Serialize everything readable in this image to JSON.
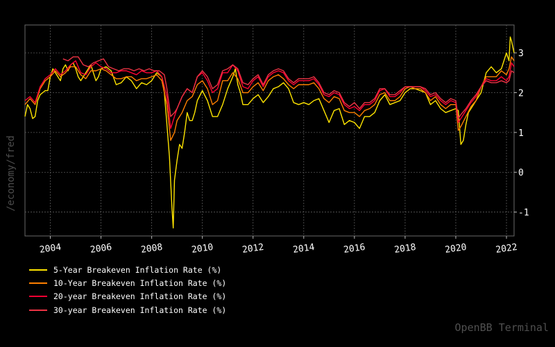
{
  "side_label": "/economy/fred",
  "watermark": "OpenBB Terminal",
  "chart_data": {
    "type": "line",
    "title": "",
    "xlabel": "",
    "ylabel": "",
    "xlim": [
      2003.0,
      2022.3
    ],
    "ylim": [
      -1.6,
      3.7
    ],
    "x_ticks": [
      "2004",
      "2006",
      "2008",
      "2010",
      "2012",
      "2014",
      "2016",
      "2018",
      "2020",
      "2022"
    ],
    "y_ticks": [
      "-1",
      "0",
      "1",
      "2",
      "3"
    ],
    "y_tick_values": [
      -1,
      0,
      1,
      2,
      3
    ],
    "x_tick_values": [
      2004,
      2006,
      2008,
      2010,
      2012,
      2014,
      2016,
      2018,
      2020,
      2022
    ],
    "y_axis_side": "right",
    "grid": true,
    "legend_position": "bottom-left",
    "series": [
      {
        "name": "5-Year Breakeven Inflation Rate (%)",
        "color": "#ffe500",
        "x": [
          2003.0,
          2003.1,
          2003.2,
          2003.3,
          2003.4,
          2003.5,
          2003.6,
          2003.7,
          2003.8,
          2003.9,
          2004.0,
          2004.1,
          2004.2,
          2004.3,
          2004.4,
          2004.5,
          2004.6,
          2004.7,
          2004.8,
          2004.9,
          2005.0,
          2005.1,
          2005.2,
          2005.3,
          2005.4,
          2005.5,
          2005.6,
          2005.7,
          2005.8,
          2005.9,
          2006.0,
          2006.2,
          2006.4,
          2006.6,
          2006.8,
          2007.0,
          2007.2,
          2007.4,
          2007.6,
          2007.8,
          2008.0,
          2008.2,
          2008.4,
          2008.5,
          2008.6,
          2008.7,
          2008.8,
          2008.85,
          2008.9,
          2009.0,
          2009.1,
          2009.2,
          2009.3,
          2009.4,
          2009.5,
          2009.6,
          2009.7,
          2009.8,
          2010.0,
          2010.2,
          2010.4,
          2010.6,
          2010.8,
          2011.0,
          2011.2,
          2011.3,
          2011.4,
          2011.5,
          2011.6,
          2011.8,
          2012.0,
          2012.2,
          2012.4,
          2012.6,
          2012.8,
          2013.0,
          2013.2,
          2013.4,
          2013.6,
          2013.8,
          2014.0,
          2014.2,
          2014.4,
          2014.6,
          2014.8,
          2015.0,
          2015.2,
          2015.4,
          2015.6,
          2015.8,
          2016.0,
          2016.2,
          2016.4,
          2016.6,
          2016.8,
          2017.0,
          2017.2,
          2017.4,
          2017.6,
          2017.8,
          2018.0,
          2018.2,
          2018.4,
          2018.6,
          2018.8,
          2019.0,
          2019.2,
          2019.4,
          2019.6,
          2019.8,
          2020.0,
          2020.1,
          2020.2,
          2020.3,
          2020.4,
          2020.5,
          2020.6,
          2020.8,
          2021.0,
          2021.2,
          2021.4,
          2021.6,
          2021.8,
          2021.9,
          2022.0,
          2022.1,
          2022.15,
          2022.2,
          2022.3
        ],
        "y": [
          1.4,
          1.7,
          1.6,
          1.35,
          1.4,
          1.8,
          1.95,
          2.0,
          2.05,
          2.05,
          2.4,
          2.6,
          2.5,
          2.4,
          2.3,
          2.6,
          2.7,
          2.55,
          2.7,
          2.75,
          2.6,
          2.4,
          2.3,
          2.4,
          2.5,
          2.6,
          2.7,
          2.5,
          2.3,
          2.4,
          2.6,
          2.65,
          2.55,
          2.2,
          2.25,
          2.4,
          2.3,
          2.1,
          2.25,
          2.2,
          2.3,
          2.5,
          2.4,
          2.0,
          1.2,
          0.4,
          -0.9,
          -1.4,
          -0.2,
          0.3,
          0.7,
          0.6,
          1.0,
          1.5,
          1.3,
          1.3,
          1.5,
          1.8,
          2.05,
          1.8,
          1.4,
          1.4,
          1.7,
          2.1,
          2.4,
          2.6,
          2.2,
          2.0,
          1.7,
          1.7,
          1.85,
          1.95,
          1.75,
          1.9,
          2.1,
          2.15,
          2.25,
          2.1,
          1.75,
          1.7,
          1.75,
          1.7,
          1.8,
          1.85,
          1.55,
          1.25,
          1.55,
          1.6,
          1.2,
          1.3,
          1.25,
          1.1,
          1.4,
          1.4,
          1.5,
          1.8,
          1.95,
          1.7,
          1.75,
          1.8,
          2.0,
          2.1,
          2.1,
          2.05,
          2.0,
          1.7,
          1.8,
          1.6,
          1.5,
          1.55,
          1.6,
          1.55,
          0.7,
          0.8,
          1.2,
          1.5,
          1.6,
          1.8,
          2.0,
          2.5,
          2.65,
          2.5,
          2.6,
          2.8,
          3.0,
          2.8,
          3.4,
          3.3,
          3.0
        ]
      },
      {
        "name": "10-Year Breakeven Inflation Rate (%)",
        "color": "#ff8000",
        "x": [
          2003.0,
          2003.2,
          2003.4,
          2003.6,
          2003.8,
          2004.0,
          2004.2,
          2004.4,
          2004.6,
          2004.8,
          2005.0,
          2005.2,
          2005.4,
          2005.6,
          2005.8,
          2006.0,
          2006.2,
          2006.4,
          2006.6,
          2006.8,
          2007.0,
          2007.2,
          2007.4,
          2007.6,
          2007.8,
          2008.0,
          2008.2,
          2008.4,
          2008.6,
          2008.75,
          2008.9,
          2009.0,
          2009.2,
          2009.4,
          2009.6,
          2009.8,
          2010.0,
          2010.2,
          2010.4,
          2010.6,
          2010.8,
          2011.0,
          2011.2,
          2011.4,
          2011.6,
          2011.8,
          2012.0,
          2012.2,
          2012.4,
          2012.6,
          2012.8,
          2013.0,
          2013.2,
          2013.4,
          2013.6,
          2013.8,
          2014.0,
          2014.2,
          2014.4,
          2014.6,
          2014.8,
          2015.0,
          2015.2,
          2015.4,
          2015.6,
          2015.8,
          2016.0,
          2016.2,
          2016.4,
          2016.6,
          2016.8,
          2017.0,
          2017.2,
          2017.4,
          2017.6,
          2017.8,
          2018.0,
          2018.2,
          2018.4,
          2018.6,
          2018.8,
          2019.0,
          2019.2,
          2019.4,
          2019.6,
          2019.8,
          2020.0,
          2020.1,
          2020.2,
          2020.4,
          2020.6,
          2020.8,
          2021.0,
          2021.2,
          2021.4,
          2021.6,
          2021.8,
          2022.0,
          2022.1,
          2022.2,
          2022.3
        ],
        "y": [
          1.7,
          1.85,
          1.7,
          2.1,
          2.3,
          2.4,
          2.55,
          2.4,
          2.5,
          2.65,
          2.65,
          2.45,
          2.35,
          2.55,
          2.55,
          2.6,
          2.55,
          2.45,
          2.35,
          2.35,
          2.4,
          2.4,
          2.3,
          2.35,
          2.35,
          2.4,
          2.45,
          2.3,
          1.7,
          0.8,
          1.0,
          1.3,
          1.5,
          1.8,
          1.9,
          2.2,
          2.3,
          2.1,
          1.7,
          1.8,
          2.3,
          2.3,
          2.5,
          2.35,
          2.0,
          2.0,
          2.15,
          2.25,
          2.05,
          2.3,
          2.4,
          2.45,
          2.35,
          2.2,
          2.1,
          2.2,
          2.2,
          2.2,
          2.25,
          2.1,
          1.85,
          1.75,
          1.9,
          1.85,
          1.55,
          1.5,
          1.5,
          1.4,
          1.55,
          1.6,
          1.7,
          1.95,
          2.0,
          1.8,
          1.8,
          1.9,
          2.1,
          2.15,
          2.1,
          2.1,
          2.0,
          1.8,
          1.9,
          1.7,
          1.6,
          1.7,
          1.7,
          1.05,
          1.15,
          1.4,
          1.65,
          1.8,
          2.15,
          2.4,
          2.4,
          2.4,
          2.55,
          2.45,
          2.6,
          2.9,
          2.8
        ]
      },
      {
        "name": "20-year Breakeven Inflation Rate (%)",
        "color": "#ff0033",
        "x": [
          2003.0,
          2003.2,
          2003.4,
          2003.6,
          2003.8,
          2004.0,
          2004.2,
          2004.4,
          2004.6,
          2004.8,
          2005.0,
          2005.2,
          2005.4,
          2005.6,
          2005.8,
          2006.0,
          2006.2,
          2006.4,
          2006.6,
          2006.8,
          2007.0,
          2007.2,
          2007.4,
          2007.6,
          2007.8,
          2008.0,
          2008.2,
          2008.4,
          2008.6,
          2008.75,
          2008.9,
          2009.0,
          2009.2,
          2009.4,
          2009.6,
          2009.8,
          2010.0,
          2010.2,
          2010.4,
          2010.6,
          2010.8,
          2011.0,
          2011.2,
          2011.4,
          2011.6,
          2011.8,
          2012.0,
          2012.2,
          2012.4,
          2012.6,
          2012.8,
          2013.0,
          2013.2,
          2013.4,
          2013.6,
          2013.8,
          2014.0,
          2014.2,
          2014.4,
          2014.6,
          2014.8,
          2015.0,
          2015.2,
          2015.4,
          2015.6,
          2015.8,
          2016.0,
          2016.2,
          2016.4,
          2016.6,
          2016.8,
          2017.0,
          2017.2,
          2017.4,
          2017.6,
          2017.8,
          2018.0,
          2018.2,
          2018.4,
          2018.6,
          2018.8,
          2019.0,
          2019.2,
          2019.4,
          2019.6,
          2019.8,
          2020.0,
          2020.1,
          2020.2,
          2020.4,
          2020.6,
          2020.8,
          2021.0,
          2021.2,
          2021.4,
          2021.6,
          2021.8,
          2022.0,
          2022.1,
          2022.2,
          2022.3
        ],
        "y": [
          1.8,
          1.9,
          1.75,
          2.15,
          2.35,
          2.45,
          2.6,
          2.45,
          2.55,
          2.7,
          2.8,
          2.5,
          2.45,
          2.65,
          2.75,
          2.65,
          2.6,
          2.5,
          2.5,
          2.55,
          2.55,
          2.5,
          2.45,
          2.55,
          2.5,
          2.5,
          2.55,
          2.4,
          1.9,
          1.1,
          1.4,
          1.6,
          1.9,
          2.1,
          2.0,
          2.4,
          2.5,
          2.3,
          2.0,
          2.1,
          2.5,
          2.5,
          2.7,
          2.55,
          2.15,
          2.1,
          2.3,
          2.4,
          2.15,
          2.4,
          2.5,
          2.55,
          2.5,
          2.3,
          2.2,
          2.3,
          2.3,
          2.3,
          2.35,
          2.2,
          1.95,
          1.9,
          2.0,
          1.95,
          1.7,
          1.6,
          1.65,
          1.55,
          1.7,
          1.7,
          1.8,
          2.05,
          2.1,
          1.9,
          1.9,
          2.0,
          2.15,
          2.15,
          2.15,
          2.15,
          2.05,
          1.9,
          1.95,
          1.8,
          1.7,
          1.8,
          1.75,
          1.25,
          1.35,
          1.55,
          1.75,
          1.9,
          2.15,
          2.35,
          2.3,
          2.3,
          2.4,
          2.3,
          2.4,
          2.75,
          2.65
        ]
      },
      {
        "name": "30-year Breakeven Inflation Rate (%)",
        "color": "#ee3344",
        "x": [
          2004.5,
          2004.7,
          2004.9,
          2005.1,
          2005.3,
          2005.5,
          2005.7,
          2005.9,
          2006.1,
          2006.3,
          2006.5,
          2006.7,
          2006.9,
          2007.1,
          2007.3,
          2007.5,
          2007.7,
          2007.9,
          2008.1,
          2008.3,
          2008.5,
          2008.6,
          2008.75,
          2008.9,
          2009.0,
          2009.2,
          2009.4,
          2009.6,
          2009.8,
          2010.0,
          2010.2,
          2010.4,
          2010.6,
          2010.8,
          2011.0,
          2011.2,
          2011.4,
          2011.6,
          2011.8,
          2012.0,
          2012.2,
          2012.4,
          2012.6,
          2012.8,
          2013.0,
          2013.2,
          2013.4,
          2013.6,
          2013.8,
          2014.0,
          2014.2,
          2014.4,
          2014.6,
          2014.8,
          2015.0,
          2015.2,
          2015.4,
          2015.6,
          2015.8,
          2016.0,
          2016.2,
          2016.4,
          2016.6,
          2016.8,
          2017.0,
          2017.2,
          2017.4,
          2017.6,
          2017.8,
          2018.0,
          2018.2,
          2018.4,
          2018.6,
          2018.8,
          2019.0,
          2019.2,
          2019.4,
          2019.6,
          2019.8,
          2020.0,
          2020.1,
          2020.2,
          2020.4,
          2020.6,
          2020.8,
          2021.0,
          2021.2,
          2021.4,
          2021.6,
          2021.8,
          2022.0,
          2022.1,
          2022.2,
          2022.3
        ],
        "y": [
          2.85,
          2.8,
          2.9,
          2.9,
          2.7,
          2.65,
          2.75,
          2.8,
          2.85,
          2.65,
          2.6,
          2.55,
          2.6,
          2.6,
          2.55,
          2.6,
          2.55,
          2.6,
          2.55,
          2.55,
          2.45,
          2.1,
          1.4,
          1.5,
          1.6,
          1.9,
          2.1,
          2.0,
          2.4,
          2.55,
          2.4,
          2.1,
          2.2,
          2.55,
          2.6,
          2.7,
          2.6,
          2.25,
          2.2,
          2.35,
          2.45,
          2.2,
          2.45,
          2.55,
          2.6,
          2.55,
          2.35,
          2.25,
          2.35,
          2.35,
          2.35,
          2.4,
          2.25,
          2.0,
          1.95,
          2.05,
          2.0,
          1.75,
          1.65,
          1.75,
          1.6,
          1.75,
          1.75,
          1.85,
          2.1,
          2.1,
          1.95,
          1.95,
          2.05,
          2.15,
          2.15,
          2.15,
          2.15,
          2.1,
          1.95,
          2.0,
          1.85,
          1.75,
          1.85,
          1.8,
          1.35,
          1.45,
          1.6,
          1.8,
          1.95,
          2.15,
          2.3,
          2.25,
          2.25,
          2.3,
          2.25,
          2.3,
          2.55,
          2.5
        ]
      }
    ]
  }
}
